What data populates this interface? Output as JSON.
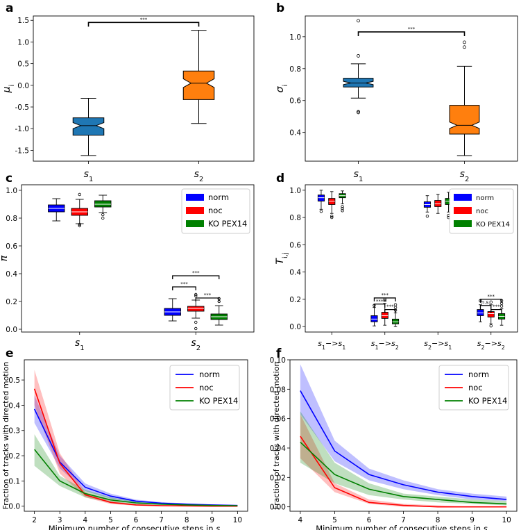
{
  "chart_data": [
    {
      "panel_letter": "a",
      "type": "box",
      "ylabel": "μ_i",
      "categories": [
        "s1",
        "s2"
      ],
      "ylim": [
        -1.75,
        1.6
      ],
      "yticks": [
        -1.5,
        -1.0,
        -0.5,
        0.0,
        0.5,
        1.0,
        1.5
      ],
      "boxes": [
        {
          "category": "s1",
          "color": "#1f77b4",
          "whislo": -1.62,
          "q1": -1.15,
          "med": -0.93,
          "q3": -0.75,
          "whishi": -0.3,
          "notch": [
            -1.0,
            -0.86
          ],
          "fliers": []
        },
        {
          "category": "s2",
          "color": "#ff7f0e",
          "whislo": -0.88,
          "q1": -0.33,
          "med": 0.05,
          "q3": 0.33,
          "whishi": 1.27,
          "notch": [
            -0.05,
            0.15
          ],
          "fliers": []
        }
      ],
      "significance": [
        {
          "from": 0,
          "to": 1,
          "y": 1.45,
          "label": "***"
        }
      ]
    },
    {
      "panel_letter": "b",
      "type": "box",
      "ylabel": "σ_i",
      "categories": [
        "s1",
        "s2"
      ],
      "ylim": [
        0.22,
        1.13
      ],
      "yticks": [
        0.4,
        0.6,
        0.8,
        1.0
      ],
      "boxes": [
        {
          "category": "s1",
          "color": "#1f77b4",
          "whislo": 0.615,
          "q1": 0.685,
          "med": 0.71,
          "q3": 0.74,
          "whishi": 0.83,
          "notch": [
            0.7,
            0.72
          ],
          "fliers": [
            0.525,
            0.53,
            0.88,
            1.1
          ]
        },
        {
          "category": "s2",
          "color": "#ff7f0e",
          "whislo": 0.255,
          "q1": 0.39,
          "med": 0.445,
          "q3": 0.57,
          "whishi": 0.815,
          "notch": [
            0.425,
            0.465
          ],
          "fliers": [
            0.935,
            0.965
          ]
        }
      ],
      "significance": [
        {
          "from": 0,
          "to": 1,
          "y": 1.03,
          "label": "***"
        }
      ]
    },
    {
      "panel_letter": "c",
      "type": "box",
      "ylabel": "π",
      "categories": [
        "s1",
        "s2"
      ],
      "ylim": [
        -0.02,
        1.04
      ],
      "yticks": [
        0.0,
        0.2,
        0.4,
        0.6,
        0.8,
        1.0
      ],
      "legend": {
        "position": "top-right",
        "entries": [
          {
            "label": "norm",
            "color": "#0000ff"
          },
          {
            "label": "noc",
            "color": "#ff0000"
          },
          {
            "label": "KO PEX14",
            "color": "#008000"
          }
        ]
      },
      "groups": [
        {
          "category": "s1",
          "boxes": [
            {
              "name": "norm",
              "color": "#0000ff",
              "whislo": 0.78,
              "q1": 0.845,
              "med": 0.87,
              "q3": 0.895,
              "whishi": 0.94,
              "fliers": []
            },
            {
              "name": "noc",
              "color": "#ff0000",
              "whislo": 0.76,
              "q1": 0.82,
              "med": 0.845,
              "q3": 0.87,
              "whishi": 0.935,
              "fliers": [
                0.745,
                0.755,
                0.97
              ]
            },
            {
              "name": "KO PEX14",
              "color": "#008000",
              "whislo": 0.84,
              "q1": 0.88,
              "med": 0.9,
              "q3": 0.925,
              "whishi": 0.965,
              "fliers": [
                0.8,
                0.825
              ]
            }
          ]
        },
        {
          "category": "s2",
          "boxes": [
            {
              "name": "norm",
              "color": "#0000ff",
              "whislo": 0.06,
              "q1": 0.1,
              "med": 0.125,
              "q3": 0.15,
              "whishi": 0.22,
              "fliers": []
            },
            {
              "name": "noc",
              "color": "#ff0000",
              "whislo": 0.08,
              "q1": 0.13,
              "med": 0.15,
              "q3": 0.165,
              "whishi": 0.21,
              "fliers": [
                0.005,
                0.05,
                0.24,
                0.25
              ]
            },
            {
              "name": "KO PEX14",
              "color": "#008000",
              "whislo": 0.03,
              "q1": 0.07,
              "med": 0.09,
              "q3": 0.11,
              "whishi": 0.17,
              "fliers": [
                0.2,
                0.22
              ]
            }
          ]
        }
      ],
      "significance": [
        {
          "group": 1,
          "from": 0,
          "to": 1,
          "y": 0.305,
          "label": "***"
        },
        {
          "group": 1,
          "from": 1,
          "to": 2,
          "y": 0.225,
          "label": "***"
        },
        {
          "group": 1,
          "from": 0,
          "to": 2,
          "y": 0.385,
          "label": "***"
        }
      ]
    },
    {
      "panel_letter": "d",
      "type": "box",
      "ylabel": "T_{i,j}",
      "categories": [
        "s1−>s1",
        "s1−>s2",
        "s2−>s1",
        "s2−>s2"
      ],
      "ylim": [
        -0.04,
        1.04
      ],
      "yticks": [
        0.0,
        0.2,
        0.4,
        0.6,
        0.8,
        1.0
      ],
      "legend": {
        "position": "top-right",
        "entries": [
          {
            "label": "norm",
            "color": "#0000ff"
          },
          {
            "label": "noc",
            "color": "#ff0000"
          },
          {
            "label": "KO PEX14",
            "color": "#008000"
          }
        ]
      },
      "groups": [
        {
          "category": "s1−>s1",
          "boxes": [
            {
              "name": "norm",
              "color": "#0000ff",
              "whislo": 0.86,
              "q1": 0.92,
              "med": 0.945,
              "q3": 0.965,
              "whishi": 1.0,
              "fliers": [
                0.845
              ]
            },
            {
              "name": "noc",
              "color": "#ff0000",
              "whislo": 0.83,
              "q1": 0.895,
              "med": 0.92,
              "q3": 0.94,
              "whishi": 0.99,
              "fliers": [
                0.8,
                0.81
              ]
            },
            {
              "name": "KO PEX14",
              "color": "#008000",
              "whislo": 0.9,
              "q1": 0.945,
              "med": 0.96,
              "q3": 0.975,
              "whishi": 0.995,
              "fliers": [
                0.85,
                0.865,
                0.88
              ]
            }
          ]
        },
        {
          "category": "s1−>s2",
          "boxes": [
            {
              "name": "norm",
              "color": "#0000ff",
              "whislo": 0.005,
              "q1": 0.035,
              "med": 0.055,
              "q3": 0.08,
              "whishi": 0.14,
              "fliers": [
                0.155
              ]
            },
            {
              "name": "noc",
              "color": "#ff0000",
              "whislo": 0.01,
              "q1": 0.06,
              "med": 0.08,
              "q3": 0.105,
              "whishi": 0.17,
              "fliers": [
                0.19,
                0.2
              ]
            },
            {
              "name": "KO PEX14",
              "color": "#008000",
              "whislo": 0.0,
              "q1": 0.02,
              "med": 0.035,
              "q3": 0.055,
              "whishi": 0.1,
              "fliers": [
                0.12,
                0.14,
                0.16
              ]
            }
          ]
        },
        {
          "category": "s2−>s1",
          "boxes": [
            {
              "name": "norm",
              "color": "#0000ff",
              "whislo": 0.84,
              "q1": 0.875,
              "med": 0.895,
              "q3": 0.915,
              "whishi": 0.96,
              "fliers": [
                0.81
              ]
            },
            {
              "name": "noc",
              "color": "#ff0000",
              "whislo": 0.83,
              "q1": 0.88,
              "med": 0.9,
              "q3": 0.925,
              "whishi": 0.97,
              "fliers": []
            },
            {
              "name": "KO PEX14",
              "color": "#008000",
              "whislo": 0.84,
              "q1": 0.895,
              "med": 0.92,
              "q3": 0.94,
              "whishi": 0.985,
              "fliers": [
                0.8,
                0.815
              ]
            }
          ]
        },
        {
          "category": "s2−>s2",
          "boxes": [
            {
              "name": "norm",
              "color": "#0000ff",
              "whislo": 0.035,
              "q1": 0.08,
              "med": 0.1,
              "q3": 0.125,
              "whishi": 0.16,
              "fliers": [
                0.19
              ]
            },
            {
              "name": "noc",
              "color": "#ff0000",
              "whislo": 0.02,
              "q1": 0.07,
              "med": 0.095,
              "q3": 0.11,
              "whishi": 0.16,
              "fliers": [
                0.005,
                0.18
              ]
            },
            {
              "name": "KO PEX14",
              "color": "#008000",
              "whislo": 0.01,
              "q1": 0.055,
              "med": 0.075,
              "q3": 0.095,
              "whishi": 0.13,
              "fliers": [
                0.15,
                0.17,
                0.19
              ]
            }
          ]
        }
      ],
      "significance": [
        {
          "group": 1,
          "from": 0,
          "to": 1,
          "y": 0.165,
          "label": "***"
        },
        {
          "group": 1,
          "from": 1,
          "to": 2,
          "y": 0.125,
          "label": "***"
        },
        {
          "group": 1,
          "from": 0,
          "to": 2,
          "y": 0.21,
          "label": "***"
        },
        {
          "group": 3,
          "from": 0,
          "to": 1,
          "y": 0.155,
          "label": "n.s."
        },
        {
          "group": 3,
          "from": 1,
          "to": 2,
          "y": 0.125,
          "label": "***"
        },
        {
          "group": 3,
          "from": 0,
          "to": 2,
          "y": 0.2,
          "label": "***"
        }
      ]
    },
    {
      "panel_letter": "e",
      "type": "line",
      "xlabel": "Minimum number of consecutive steps in s2",
      "ylabel": "Fraction of tracks with directed motion",
      "xlim": [
        1.6,
        10.4
      ],
      "ylim": [
        -0.02,
        0.58
      ],
      "xticks": [
        2,
        3,
        4,
        5,
        6,
        7,
        8,
        9,
        10
      ],
      "yticks": [
        0.0,
        0.1,
        0.2,
        0.3,
        0.4,
        0.5
      ],
      "x": [
        2,
        3,
        4,
        5,
        6,
        7,
        8,
        9,
        10
      ],
      "legend": {
        "position": "top-right"
      },
      "series": [
        {
          "name": "norm",
          "color": "#0000ff",
          "values": [
            0.385,
            0.175,
            0.075,
            0.04,
            0.02,
            0.012,
            0.008,
            0.005,
            0.003
          ],
          "lower": [
            0.33,
            0.15,
            0.06,
            0.03,
            0.014,
            0.008,
            0.005,
            0.003,
            0.001
          ],
          "upper": [
            0.44,
            0.2,
            0.09,
            0.05,
            0.026,
            0.016,
            0.011,
            0.007,
            0.005
          ]
        },
        {
          "name": "noc",
          "color": "#ff0000",
          "values": [
            0.465,
            0.17,
            0.045,
            0.015,
            0.005,
            0.002,
            0.001,
            0.0,
            0.0
          ],
          "lower": [
            0.4,
            0.13,
            0.035,
            0.009,
            0.002,
            0.0,
            0.0,
            0.0,
            0.0
          ],
          "upper": [
            0.54,
            0.21,
            0.055,
            0.021,
            0.008,
            0.004,
            0.002,
            0.001,
            0.001
          ]
        },
        {
          "name": "KO PEX14",
          "color": "#008000",
          "values": [
            0.225,
            0.1,
            0.05,
            0.025,
            0.013,
            0.008,
            0.005,
            0.003,
            0.002
          ],
          "lower": [
            0.16,
            0.08,
            0.035,
            0.015,
            0.007,
            0.004,
            0.002,
            0.001,
            0.0
          ],
          "upper": [
            0.285,
            0.12,
            0.065,
            0.035,
            0.019,
            0.012,
            0.008,
            0.005,
            0.004
          ]
        }
      ]
    },
    {
      "panel_letter": "f",
      "type": "line",
      "xlabel": "Minimum number of consecutive steps in s2",
      "ylabel": "Fraction of tracks with directed motion",
      "xlim": [
        3.7,
        10.3
      ],
      "ylim": [
        -0.003,
        0.1
      ],
      "xticks": [
        4,
        5,
        6,
        7,
        8,
        9,
        10
      ],
      "yticks": [
        0.0,
        0.02,
        0.04,
        0.06,
        0.08,
        0.1
      ],
      "x": [
        4,
        5,
        6,
        7,
        8,
        9,
        10
      ],
      "legend": {
        "position": "top-right"
      },
      "series": [
        {
          "name": "norm",
          "color": "#0000ff",
          "values": [
            0.079,
            0.038,
            0.022,
            0.015,
            0.01,
            0.007,
            0.005
          ],
          "lower": [
            0.063,
            0.031,
            0.018,
            0.012,
            0.008,
            0.005,
            0.004
          ],
          "upper": [
            0.097,
            0.045,
            0.026,
            0.018,
            0.012,
            0.009,
            0.007
          ]
        },
        {
          "name": "noc",
          "color": "#ff0000",
          "values": [
            0.048,
            0.013,
            0.003,
            0.001,
            0.0,
            0.0,
            0.0
          ],
          "lower": [
            0.033,
            0.01,
            0.002,
            0.0,
            0.0,
            0.0,
            0.0
          ],
          "upper": [
            0.063,
            0.016,
            0.005,
            0.002,
            0.001,
            0.0,
            0.0
          ]
        },
        {
          "name": "KO PEX14",
          "color": "#008000",
          "values": [
            0.044,
            0.022,
            0.012,
            0.007,
            0.005,
            0.003,
            0.002
          ],
          "lower": [
            0.03,
            0.016,
            0.008,
            0.005,
            0.003,
            0.002,
            0.001
          ],
          "upper": [
            0.065,
            0.03,
            0.016,
            0.009,
            0.007,
            0.005,
            0.004
          ]
        }
      ]
    }
  ]
}
